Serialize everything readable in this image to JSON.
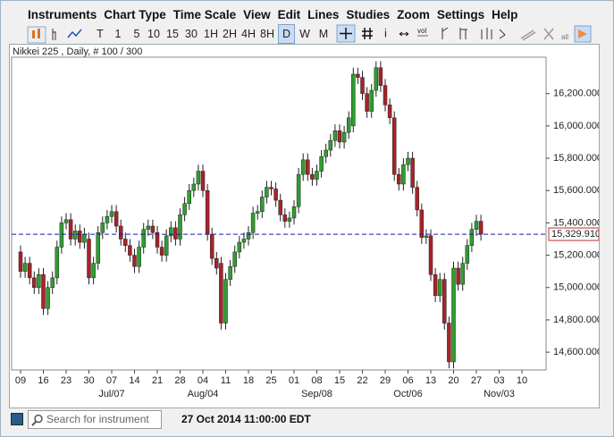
{
  "menu": [
    "Instruments",
    "Chart Type",
    "Time Scale",
    "View",
    "Edit",
    "Lines",
    "Studies",
    "Zoom",
    "Settings",
    "Help"
  ],
  "toolbar": {
    "timeframes": [
      "T",
      "1",
      "5",
      "10",
      "15",
      "30",
      "1H",
      "2H",
      "4H",
      "8H",
      "D",
      "W",
      "M"
    ],
    "icon_texts": [
      "i",
      "vol",
      "all"
    ]
  },
  "search_placeholder": "Search for instrument",
  "status": "27 Oct 2014 11:00:00 EDT",
  "chart_data": {
    "type": "candlestick",
    "title": "Nikkei 225 , Daily, # 100 / 300",
    "up_color": "#2e9e2e",
    "down_color": "#a8232a",
    "open": [
      15220,
      15100,
      15150,
      15060,
      15000,
      15080,
      14870,
      15000,
      15060,
      15250,
      15400,
      15420,
      15300,
      15350,
      15280,
      15300,
      15060,
      15150,
      15340,
      15400,
      15440,
      15470,
      15380,
      15300,
      15260,
      15200,
      15130,
      15250,
      15360,
      15380,
      15340,
      15250,
      15200,
      15320,
      15370,
      15300,
      15450,
      15520,
      15600,
      15640,
      15720,
      15600,
      15330,
      15180,
      15150,
      14780,
      15050,
      15130,
      15220,
      15280,
      15300,
      15340,
      15460,
      15470,
      15560,
      15620,
      15610,
      15540,
      15450,
      15410,
      15430,
      15500,
      15700,
      15790,
      15700,
      15670,
      15720,
      15810,
      15850,
      15910,
      15970,
      15900,
      15960,
      16000,
      16320,
      16300,
      16200,
      16090,
      16220,
      16360,
      16250,
      16130,
      16050,
      15700,
      15640,
      15760,
      15800,
      15620,
      15480,
      15310,
      15320,
      15080,
      14950,
      15050,
      14780,
      14540,
      15120,
      15020,
      15150,
      15260,
      15360,
      15410
    ],
    "high": [
      15260,
      15190,
      15190,
      15100,
      15120,
      15120,
      15040,
      15100,
      15290,
      15440,
      15460,
      15460,
      15390,
      15390,
      15370,
      15340,
      15190,
      15380,
      15440,
      15480,
      15510,
      15510,
      15420,
      15340,
      15300,
      15240,
      15290,
      15400,
      15420,
      15420,
      15380,
      15290,
      15360,
      15410,
      15410,
      15490,
      15560,
      15640,
      15680,
      15760,
      15760,
      15640,
      15370,
      15220,
      15190,
      15090,
      15170,
      15260,
      15320,
      15340,
      15380,
      15500,
      15510,
      15600,
      15660,
      15660,
      15650,
      15580,
      15490,
      15470,
      15540,
      15740,
      15830,
      15830,
      15740,
      15760,
      15850,
      15890,
      15950,
      16010,
      16010,
      16000,
      16090,
      16360,
      16360,
      16340,
      16240,
      16260,
      16400,
      16400,
      16290,
      16170,
      16090,
      15740,
      15800,
      15840,
      15840,
      15660,
      15520,
      15360,
      15360,
      15120,
      15090,
      15090,
      14820,
      15160,
      15160,
      15190,
      15300,
      15400,
      15450,
      15450
    ],
    "low": [
      15060,
      15060,
      15020,
      14960,
      14960,
      14830,
      14830,
      14960,
      15020,
      15210,
      15360,
      15260,
      15260,
      15240,
      15240,
      15020,
      15020,
      15110,
      15300,
      15360,
      15400,
      15340,
      15260,
      15220,
      15160,
      15090,
      15090,
      15210,
      15320,
      15300,
      15210,
      15160,
      15160,
      15280,
      15260,
      15260,
      15410,
      15480,
      15560,
      15600,
      15560,
      15290,
      15140,
      15080,
      14740,
      14740,
      15010,
      15090,
      15180,
      15240,
      15260,
      15300,
      15420,
      15430,
      15520,
      15570,
      15500,
      15410,
      15370,
      15370,
      15390,
      15460,
      15660,
      15660,
      15630,
      15630,
      15680,
      15770,
      15810,
      15870,
      15860,
      15860,
      15920,
      15960,
      16260,
      16160,
      16050,
      16050,
      16180,
      16210,
      16090,
      16010,
      15660,
      15600,
      15600,
      15720,
      15580,
      15440,
      15270,
      15270,
      15040,
      14910,
      14910,
      14740,
      14500,
      14500,
      14980,
      14980,
      15110,
      15220,
      15320,
      15290
    ],
    "close": [
      15100,
      15150,
      15060,
      15000,
      15080,
      14870,
      15000,
      15060,
      15250,
      15400,
      15420,
      15300,
      15350,
      15280,
      15330,
      15060,
      15150,
      15340,
      15400,
      15440,
      15470,
      15380,
      15300,
      15260,
      15200,
      15130,
      15250,
      15360,
      15380,
      15340,
      15250,
      15200,
      15320,
      15370,
      15300,
      15450,
      15520,
      15600,
      15640,
      15720,
      15600,
      15330,
      15180,
      15120,
      14780,
      15050,
      15130,
      15220,
      15280,
      15300,
      15340,
      15460,
      15470,
      15560,
      15620,
      15610,
      15540,
      15450,
      15410,
      15430,
      15500,
      15700,
      15790,
      15700,
      15670,
      15720,
      15810,
      15850,
      15910,
      15970,
      15900,
      15960,
      16050,
      16320,
      16300,
      16200,
      16090,
      16220,
      16360,
      16250,
      16130,
      16050,
      15700,
      15640,
      15760,
      15800,
      15620,
      15480,
      15310,
      15320,
      15080,
      14950,
      15050,
      14780,
      14540,
      15120,
      15020,
      15150,
      15260,
      15360,
      15410,
      15329.91
    ],
    "ylim": [
      14490,
      16425
    ],
    "yticks": [
      {
        "value": 14600,
        "label": "14,600.000"
      },
      {
        "value": 14800,
        "label": "14,800.000"
      },
      {
        "value": 15000,
        "label": "15,000.000"
      },
      {
        "value": 15200,
        "label": "15,200.000"
      },
      {
        "value": 15400,
        "label": "15,400.000"
      },
      {
        "value": 15600,
        "label": "15,600.000"
      },
      {
        "value": 15800,
        "label": "15,800.000"
      },
      {
        "value": 16000,
        "label": "16,000.000"
      },
      {
        "value": 16200,
        "label": "16,200.000"
      }
    ],
    "xticks": [
      "09",
      "16",
      "23",
      "30",
      "07",
      "14",
      "21",
      "28",
      "04",
      "11",
      "18",
      "25",
      "01",
      "08",
      "15",
      "22",
      "29",
      "06",
      "13",
      "20",
      "27",
      "03",
      "10"
    ],
    "xtick_months": [
      null,
      null,
      null,
      null,
      "Jul/07",
      null,
      null,
      null,
      "Aug/04",
      null,
      null,
      null,
      null,
      "Sep/08",
      null,
      null,
      null,
      "Oct/06",
      null,
      null,
      null,
      "Nov/03",
      null
    ],
    "last_price": {
      "value": 15329.91,
      "label": "15,329.910",
      "color": "#1a1aa0"
    }
  }
}
